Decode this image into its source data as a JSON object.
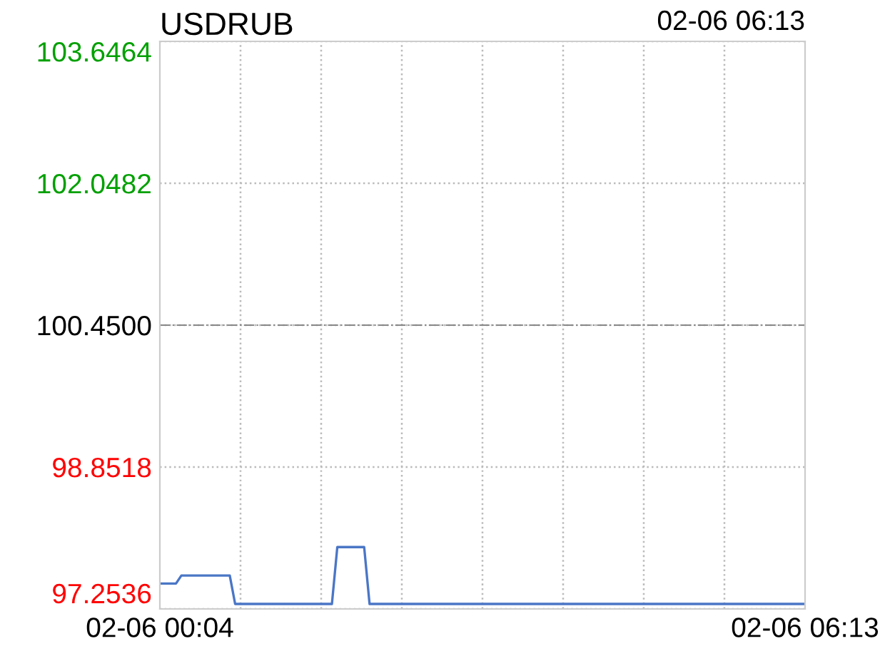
{
  "chart_data": {
    "type": "line",
    "title": "USDRUB",
    "annotations": [
      "02-06 06:13"
    ],
    "categories": [
      "02-06 00:04",
      null,
      null,
      null,
      null,
      null,
      null,
      null,
      null,
      null,
      null,
      null,
      null,
      null,
      null,
      null,
      null,
      null,
      null,
      null,
      null,
      null,
      null,
      null,
      null,
      null,
      null,
      null,
      null,
      null,
      null,
      null,
      null,
      null,
      null,
      null,
      null,
      null,
      null,
      null,
      null,
      null,
      null,
      null,
      null,
      null,
      null,
      null,
      null,
      null,
      null,
      null,
      null,
      null,
      null,
      null,
      null,
      null,
      null,
      null,
      null,
      null,
      null,
      null,
      null,
      null,
      null,
      null,
      null,
      null,
      null,
      null,
      null,
      null,
      null,
      null,
      null,
      null,
      null,
      null,
      null,
      null,
      null,
      null,
      null,
      null,
      null,
      null,
      null,
      null,
      null,
      null,
      null,
      null,
      null,
      null,
      null,
      null,
      null,
      null,
      null,
      null,
      null,
      null,
      null,
      null,
      null,
      null,
      null,
      null,
      null,
      null,
      null,
      null,
      null,
      null,
      null,
      null,
      null,
      null,
      "02-06 06:13"
    ],
    "series": [
      {
        "color": "#4a76c6",
        "values": [
          97.54,
          97.54,
          97.54,
          97.54,
          97.63,
          97.63,
          97.63,
          97.63,
          97.63,
          97.63,
          97.63,
          97.63,
          97.63,
          97.63,
          97.31,
          97.31,
          97.31,
          97.31,
          97.31,
          97.31,
          97.31,
          97.31,
          97.31,
          97.31,
          97.31,
          97.31,
          97.31,
          97.31,
          97.31,
          97.31,
          97.31,
          97.31,
          97.31,
          97.95,
          97.95,
          97.95,
          97.95,
          97.95,
          97.95,
          97.31,
          97.31,
          97.31,
          97.31,
          97.31,
          97.31,
          97.31,
          97.31,
          97.31,
          97.31,
          97.31,
          97.31,
          97.31,
          97.31,
          97.31,
          97.31,
          97.31,
          97.31,
          97.31,
          97.31,
          97.31,
          97.31,
          97.31,
          97.31,
          97.31,
          97.31,
          97.31,
          97.31,
          97.31,
          97.31,
          97.31,
          97.31,
          97.31,
          97.31,
          97.31,
          97.31,
          97.31,
          97.31,
          97.31,
          97.31,
          97.31,
          97.31,
          97.31,
          97.31,
          97.31,
          97.31,
          97.31,
          97.31,
          97.31,
          97.31,
          97.31,
          97.31,
          97.31,
          97.31,
          97.31,
          97.31,
          97.31,
          97.31,
          97.31,
          97.31,
          97.31,
          97.31,
          97.31,
          97.31,
          97.31,
          97.31,
          97.31,
          97.31,
          97.31,
          97.31,
          97.31,
          97.31,
          97.31,
          97.31,
          97.31,
          97.31,
          97.31,
          97.31,
          97.31,
          97.31,
          97.31,
          97.31
        ]
      }
    ],
    "ylim": [
      97.2536,
      103.6464
    ],
    "yticks": [
      {
        "value": 97.2536,
        "label": "97.2536"
      },
      {
        "value": 98.8518,
        "label": "98.8518"
      },
      {
        "value": 100.45,
        "label": "100.4500"
      },
      {
        "value": 102.0482,
        "label": "102.0482"
      },
      {
        "value": 103.6464,
        "label": "103.6464"
      }
    ],
    "ref_lines": [
      {
        "axis": "y",
        "value": 100.45,
        "color": "#888888",
        "line_style": "dashdot"
      }
    ],
    "grid": true,
    "marker": "none",
    "line_style": "solid",
    "legend": false
  }
}
